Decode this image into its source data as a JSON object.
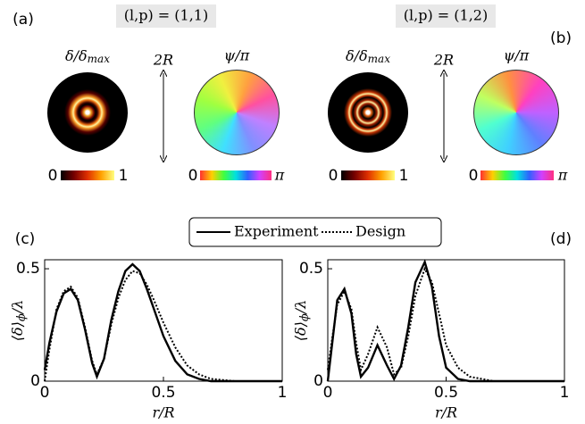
{
  "panels": {
    "a": "(a)",
    "b": "(b)",
    "c": "(c)",
    "d": "(d)"
  },
  "maps": [
    {
      "mode": "(l,p) = (1,1)",
      "intensity_label": {
        "main": "δ/δ",
        "sub": "max"
      },
      "size_label": "2R",
      "phase_label": "ψ/π",
      "intensity_bar": {
        "min": "0",
        "max": "1"
      },
      "phase_bar": {
        "min": "0",
        "max": "π"
      }
    },
    {
      "mode": "(l,p) = (1,2)",
      "intensity_label": {
        "main": "δ/δ",
        "sub": "max"
      },
      "size_label": "2R",
      "phase_label": "ψ/π",
      "intensity_bar": {
        "min": "0",
        "max": "1"
      },
      "phase_bar": {
        "min": "0",
        "max": "π"
      }
    }
  ],
  "chart_data": [
    {
      "type": "line",
      "xlabel": "r/R",
      "ylabel": {
        "main": "⟨δ⟩",
        "sub": "ϕ",
        "end": "/λ"
      },
      "xlim": [
        0,
        1
      ],
      "ylim": [
        0,
        0.54
      ],
      "xticks": [
        0,
        0.5,
        1
      ],
      "yticks": [
        0,
        0.5
      ],
      "x": [
        0,
        0.02,
        0.05,
        0.08,
        0.11,
        0.14,
        0.17,
        0.2,
        0.22,
        0.25,
        0.28,
        0.31,
        0.34,
        0.37,
        0.4,
        0.43,
        0.46,
        0.5,
        0.55,
        0.6,
        0.65,
        0.7,
        0.8,
        0.9,
        1
      ],
      "series": [
        {
          "name": "Experiment",
          "color": "#000000",
          "style": "solid",
          "values": [
            0.05,
            0.17,
            0.31,
            0.39,
            0.41,
            0.36,
            0.23,
            0.08,
            0.02,
            0.1,
            0.27,
            0.4,
            0.49,
            0.52,
            0.49,
            0.41,
            0.32,
            0.2,
            0.09,
            0.03,
            0.01,
            0,
            0,
            0,
            0
          ]
        },
        {
          "name": "Design",
          "color": "#000000",
          "style": "dotted",
          "values": [
            0,
            0.14,
            0.32,
            0.4,
            0.42,
            0.37,
            0.24,
            0.09,
            0.03,
            0.1,
            0.25,
            0.37,
            0.45,
            0.49,
            0.48,
            0.43,
            0.36,
            0.26,
            0.15,
            0.07,
            0.03,
            0.01,
            0,
            0,
            0
          ]
        }
      ]
    },
    {
      "type": "line",
      "xlabel": "r/R",
      "ylabel": {
        "main": "⟨δ⟩",
        "sub": "ϕ",
        "end": "/λ"
      },
      "xlim": [
        0,
        1
      ],
      "ylim": [
        0,
        0.54
      ],
      "xticks": [
        0,
        0.5,
        1
      ],
      "yticks": [
        0,
        0.5
      ],
      "x": [
        0,
        0.02,
        0.04,
        0.07,
        0.1,
        0.12,
        0.14,
        0.17,
        0.21,
        0.25,
        0.28,
        0.31,
        0.34,
        0.37,
        0.41,
        0.44,
        0.47,
        0.5,
        0.55,
        0.6,
        0.7,
        0.8,
        1
      ],
      "series": [
        {
          "color": "#000000",
          "style": "solid",
          "values": [
            0,
            0.18,
            0.36,
            0.41,
            0.3,
            0.12,
            0.02,
            0.06,
            0.16,
            0.07,
            0.01,
            0.07,
            0.24,
            0.44,
            0.53,
            0.42,
            0.2,
            0.06,
            0.01,
            0,
            0,
            0,
            0
          ]
        },
        {
          "color": "#000000",
          "style": "dotted",
          "values": [
            0.05,
            0.2,
            0.34,
            0.4,
            0.32,
            0.17,
            0.05,
            0.12,
            0.24,
            0.15,
            0.03,
            0.06,
            0.2,
            0.38,
            0.5,
            0.44,
            0.3,
            0.16,
            0.06,
            0.02,
            0,
            0,
            0
          ]
        }
      ]
    }
  ]
}
